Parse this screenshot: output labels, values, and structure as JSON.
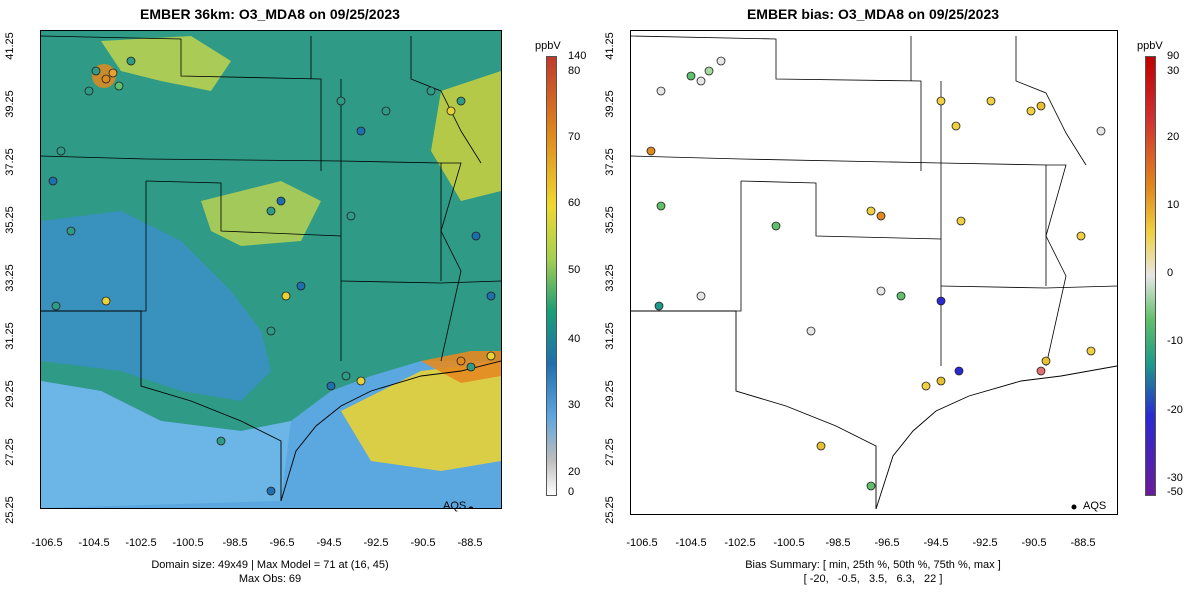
{
  "left_panel": {
    "title": "EMBER 36km: O3_MDA8 on 09/25/2023",
    "y_labels": [
      "41.25",
      "39.25",
      "37.25",
      "35.25",
      "33.25",
      "31.25",
      "29.25",
      "27.25",
      "25.25"
    ],
    "x_labels": [
      "-106.5",
      "-104.5",
      "-102.5",
      "-100.5",
      "-98.5",
      "-96.5",
      "-94.5",
      "-92.5",
      "-90.5",
      "-88.5"
    ],
    "legend_label": "AQS",
    "caption_line1": "Domain size: 49x49 | Max Model = 71 at (16, 45)",
    "caption_line2": "Max Obs: 69",
    "colorbar": {
      "unit": "ppbV",
      "ticks": [
        "140",
        "80",
        "70",
        "60",
        "50",
        "40",
        "30",
        "20",
        "0"
      ],
      "colors": [
        "#ffffff",
        "#bdbdbd",
        "#5da6e0",
        "#1f6fb0",
        "#1b9e77",
        "#a6d050",
        "#f0d830",
        "#e08a1e",
        "#c0392b"
      ]
    }
  },
  "right_panel": {
    "title": "EMBER bias: O3_MDA8 on 09/25/2023",
    "y_labels": [
      "41.25",
      "39.25",
      "37.25",
      "35.25",
      "33.25",
      "31.25",
      "29.25",
      "27.25",
      "25.25"
    ],
    "x_labels": [
      "-106.5",
      "-104.5",
      "-102.5",
      "-100.5",
      "-98.5",
      "-96.5",
      "-94.5",
      "-92.5",
      "-90.5",
      "-88.5"
    ],
    "legend_label": "AQS",
    "caption_line1": "Bias Summary: [ min, 25th %, 50th %, 75th %, max ]",
    "caption_line2": "[ -20,   -0.5,   3.5,   6.3,   22 ]",
    "colorbar": {
      "unit": "ppbV",
      "ticks": [
        "90",
        "30",
        "20",
        "10",
        "0",
        "-10",
        "-20",
        "-30",
        "-50"
      ],
      "colors": [
        "#6a1b9a",
        "#2a2ad0",
        "#1f9a8a",
        "#5fbf6a",
        "#e6e6e6",
        "#f0d040",
        "#e08a1e",
        "#c03030",
        "#e00000"
      ]
    }
  }
}
